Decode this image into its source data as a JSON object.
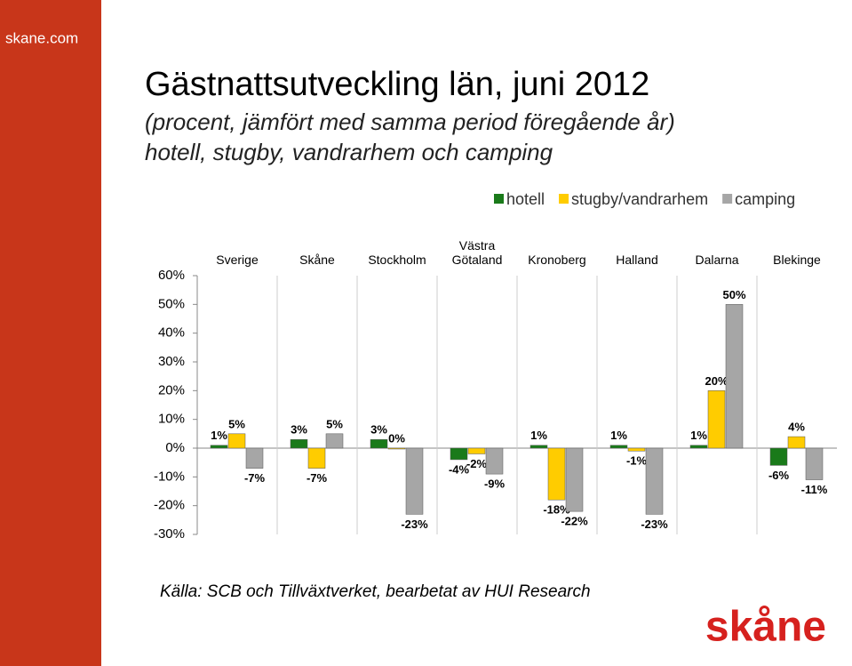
{
  "site": "skane.com",
  "chart_data": {
    "type": "bar",
    "title": "Gästnattsutveckling län, juni 2012",
    "subtitle": [
      "(procent, jämfört med samma period föregående år)",
      "hotell, stugby, vandrarhem och camping"
    ],
    "categories": [
      "Sverige",
      "Skåne",
      "Stockholm",
      "Västra Götaland",
      "Kronoberg",
      "Halland",
      "Dalarna",
      "Blekinge"
    ],
    "series": [
      {
        "name": "hotell",
        "color": "#1a7a1a",
        "values": [
          1,
          3,
          3,
          -4,
          1,
          1,
          1,
          -6
        ],
        "value_labels": [
          "1%",
          "3%",
          "3%",
          "-4%",
          "1%",
          "1%",
          "1%",
          "-6%"
        ]
      },
      {
        "name": "stugby/vandrarhem",
        "color": "#ffcc00",
        "values": [
          5,
          -7,
          0,
          -2,
          -18,
          -1,
          20,
          4
        ],
        "value_labels": [
          "5%",
          "-7%",
          "0%",
          "-2%",
          "-18%",
          "-1%",
          "20%",
          "4%"
        ]
      },
      {
        "name": "camping",
        "color": "#a6a6a6",
        "values": [
          -7,
          5,
          -23,
          -9,
          -22,
          -23,
          50,
          -11
        ],
        "value_labels": [
          "-7%",
          "5%",
          "-23%",
          "-9%",
          "-22%",
          "-23%",
          "50%",
          "-11%"
        ]
      }
    ],
    "ylim": [
      -30,
      60
    ],
    "yticks": [
      {
        "value": -30,
        "label": "-30%"
      },
      {
        "value": -20,
        "label": "-20%"
      },
      {
        "value": -10,
        "label": "-10%"
      },
      {
        "value": 0,
        "label": "0%"
      },
      {
        "value": 10,
        "label": "10%"
      },
      {
        "value": 20,
        "label": "20%"
      },
      {
        "value": 30,
        "label": "30%"
      },
      {
        "value": 40,
        "label": "40%"
      },
      {
        "value": 50,
        "label": "50%"
      },
      {
        "value": 60,
        "label": "60%"
      }
    ],
    "source": "Källa: SCB och Tillväxtverket, bearbetat av HUI Research"
  },
  "logo": "skåne"
}
